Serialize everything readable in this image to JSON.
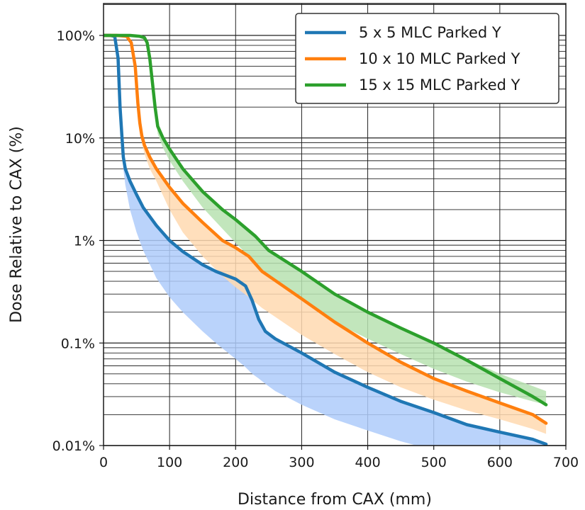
{
  "chart_data": {
    "type": "line",
    "xlabel": "Distance from CAX (mm)",
    "ylabel": "Dose Relative to CAX (%)",
    "xlim": [
      0,
      700
    ],
    "ylim": [
      0.01,
      200
    ],
    "y_scale": "log",
    "grid": true,
    "legend_position": "top-right",
    "x_ticks": [
      0,
      100,
      200,
      300,
      400,
      500,
      600,
      700
    ],
    "x_tick_labels": [
      "0",
      "100",
      "200",
      "300",
      "400",
      "500",
      "600",
      "700"
    ],
    "y_ticks": [
      0.01,
      0.1,
      1,
      10,
      100
    ],
    "y_tick_labels": [
      "0.01%",
      "0.1%",
      "1%",
      "10%",
      "100%"
    ],
    "series": [
      {
        "name": "5 x 5 MLC Parked Y",
        "color": "#1f77b4",
        "band_color": "#aecbfa",
        "x": [
          0,
          10,
          17,
          22,
          25,
          28,
          30,
          33,
          40,
          50,
          60,
          80,
          100,
          120,
          150,
          170,
          200,
          215,
          225,
          235,
          245,
          260,
          300,
          350,
          400,
          450,
          500,
          550,
          600,
          650,
          670
        ],
        "y": [
          100,
          100,
          98,
          60,
          20,
          10,
          6.5,
          5,
          3.8,
          2.8,
          2.1,
          1.4,
          1.0,
          0.78,
          0.58,
          0.5,
          0.42,
          0.36,
          0.26,
          0.17,
          0.13,
          0.11,
          0.08,
          0.052,
          0.037,
          0.027,
          0.021,
          0.016,
          0.0135,
          0.0115,
          0.0103
        ],
        "band_low": [
          100,
          100,
          98,
          60,
          20,
          9,
          5,
          3.5,
          2.0,
          1.2,
          0.8,
          0.43,
          0.28,
          0.2,
          0.13,
          0.1,
          0.07,
          0.058,
          0.05,
          0.045,
          0.04,
          0.034,
          0.025,
          0.018,
          0.014,
          0.011,
          0.009,
          0.008,
          0.008,
          0.008,
          0.008
        ]
      },
      {
        "name": "10 x 10 MLC Parked Y",
        "color": "#ff7f0e",
        "band_color": "#ffd9b0",
        "x": [
          0,
          20,
          35,
          42,
          48,
          52,
          55,
          58,
          62,
          70,
          80,
          100,
          120,
          150,
          180,
          200,
          220,
          240,
          300,
          350,
          400,
          450,
          500,
          550,
          600,
          650,
          670
        ],
        "y": [
          100,
          100,
          98,
          85,
          50,
          22,
          14,
          10.5,
          8.5,
          6.5,
          5,
          3.3,
          2.3,
          1.5,
          1.0,
          0.85,
          0.7,
          0.5,
          0.27,
          0.16,
          0.1,
          0.065,
          0.045,
          0.034,
          0.026,
          0.02,
          0.0165
        ],
        "band_low": [
          100,
          100,
          98,
          85,
          50,
          20,
          12,
          9,
          7,
          5,
          3.8,
          2.0,
          1.2,
          0.7,
          0.45,
          0.35,
          0.28,
          0.22,
          0.12,
          0.078,
          0.052,
          0.037,
          0.028,
          0.022,
          0.018,
          0.0145,
          0.013
        ]
      },
      {
        "name": "15 x 15 MLC Parked Y",
        "color": "#2ca02c",
        "band_color": "#b7e2b0",
        "x": [
          0,
          20,
          40,
          55,
          62,
          66,
          70,
          74,
          78,
          82,
          90,
          100,
          120,
          150,
          180,
          200,
          230,
          250,
          300,
          350,
          400,
          450,
          500,
          550,
          600,
          650,
          670
        ],
        "y": [
          100,
          100,
          100,
          98,
          95,
          85,
          60,
          35,
          20,
          13,
          10,
          7.8,
          5,
          3,
          2,
          1.6,
          1.1,
          0.8,
          0.5,
          0.3,
          0.2,
          0.14,
          0.1,
          0.068,
          0.045,
          0.03,
          0.025
        ],
        "band_low": [
          100,
          100,
          100,
          98,
          95,
          85,
          55,
          30,
          18,
          11,
          8,
          6,
          3.8,
          2.1,
          1.3,
          0.95,
          0.6,
          0.45,
          0.26,
          0.16,
          0.11,
          0.078,
          0.056,
          0.042,
          0.033,
          0.027,
          0.025
        ],
        "band_high": [
          100,
          100,
          100,
          98,
          95,
          85,
          60,
          35,
          20,
          13,
          10,
          7.8,
          5,
          3,
          2,
          1.6,
          1.1,
          0.8,
          0.5,
          0.3,
          0.2,
          0.14,
          0.1,
          0.07,
          0.05,
          0.038,
          0.034
        ]
      }
    ]
  }
}
